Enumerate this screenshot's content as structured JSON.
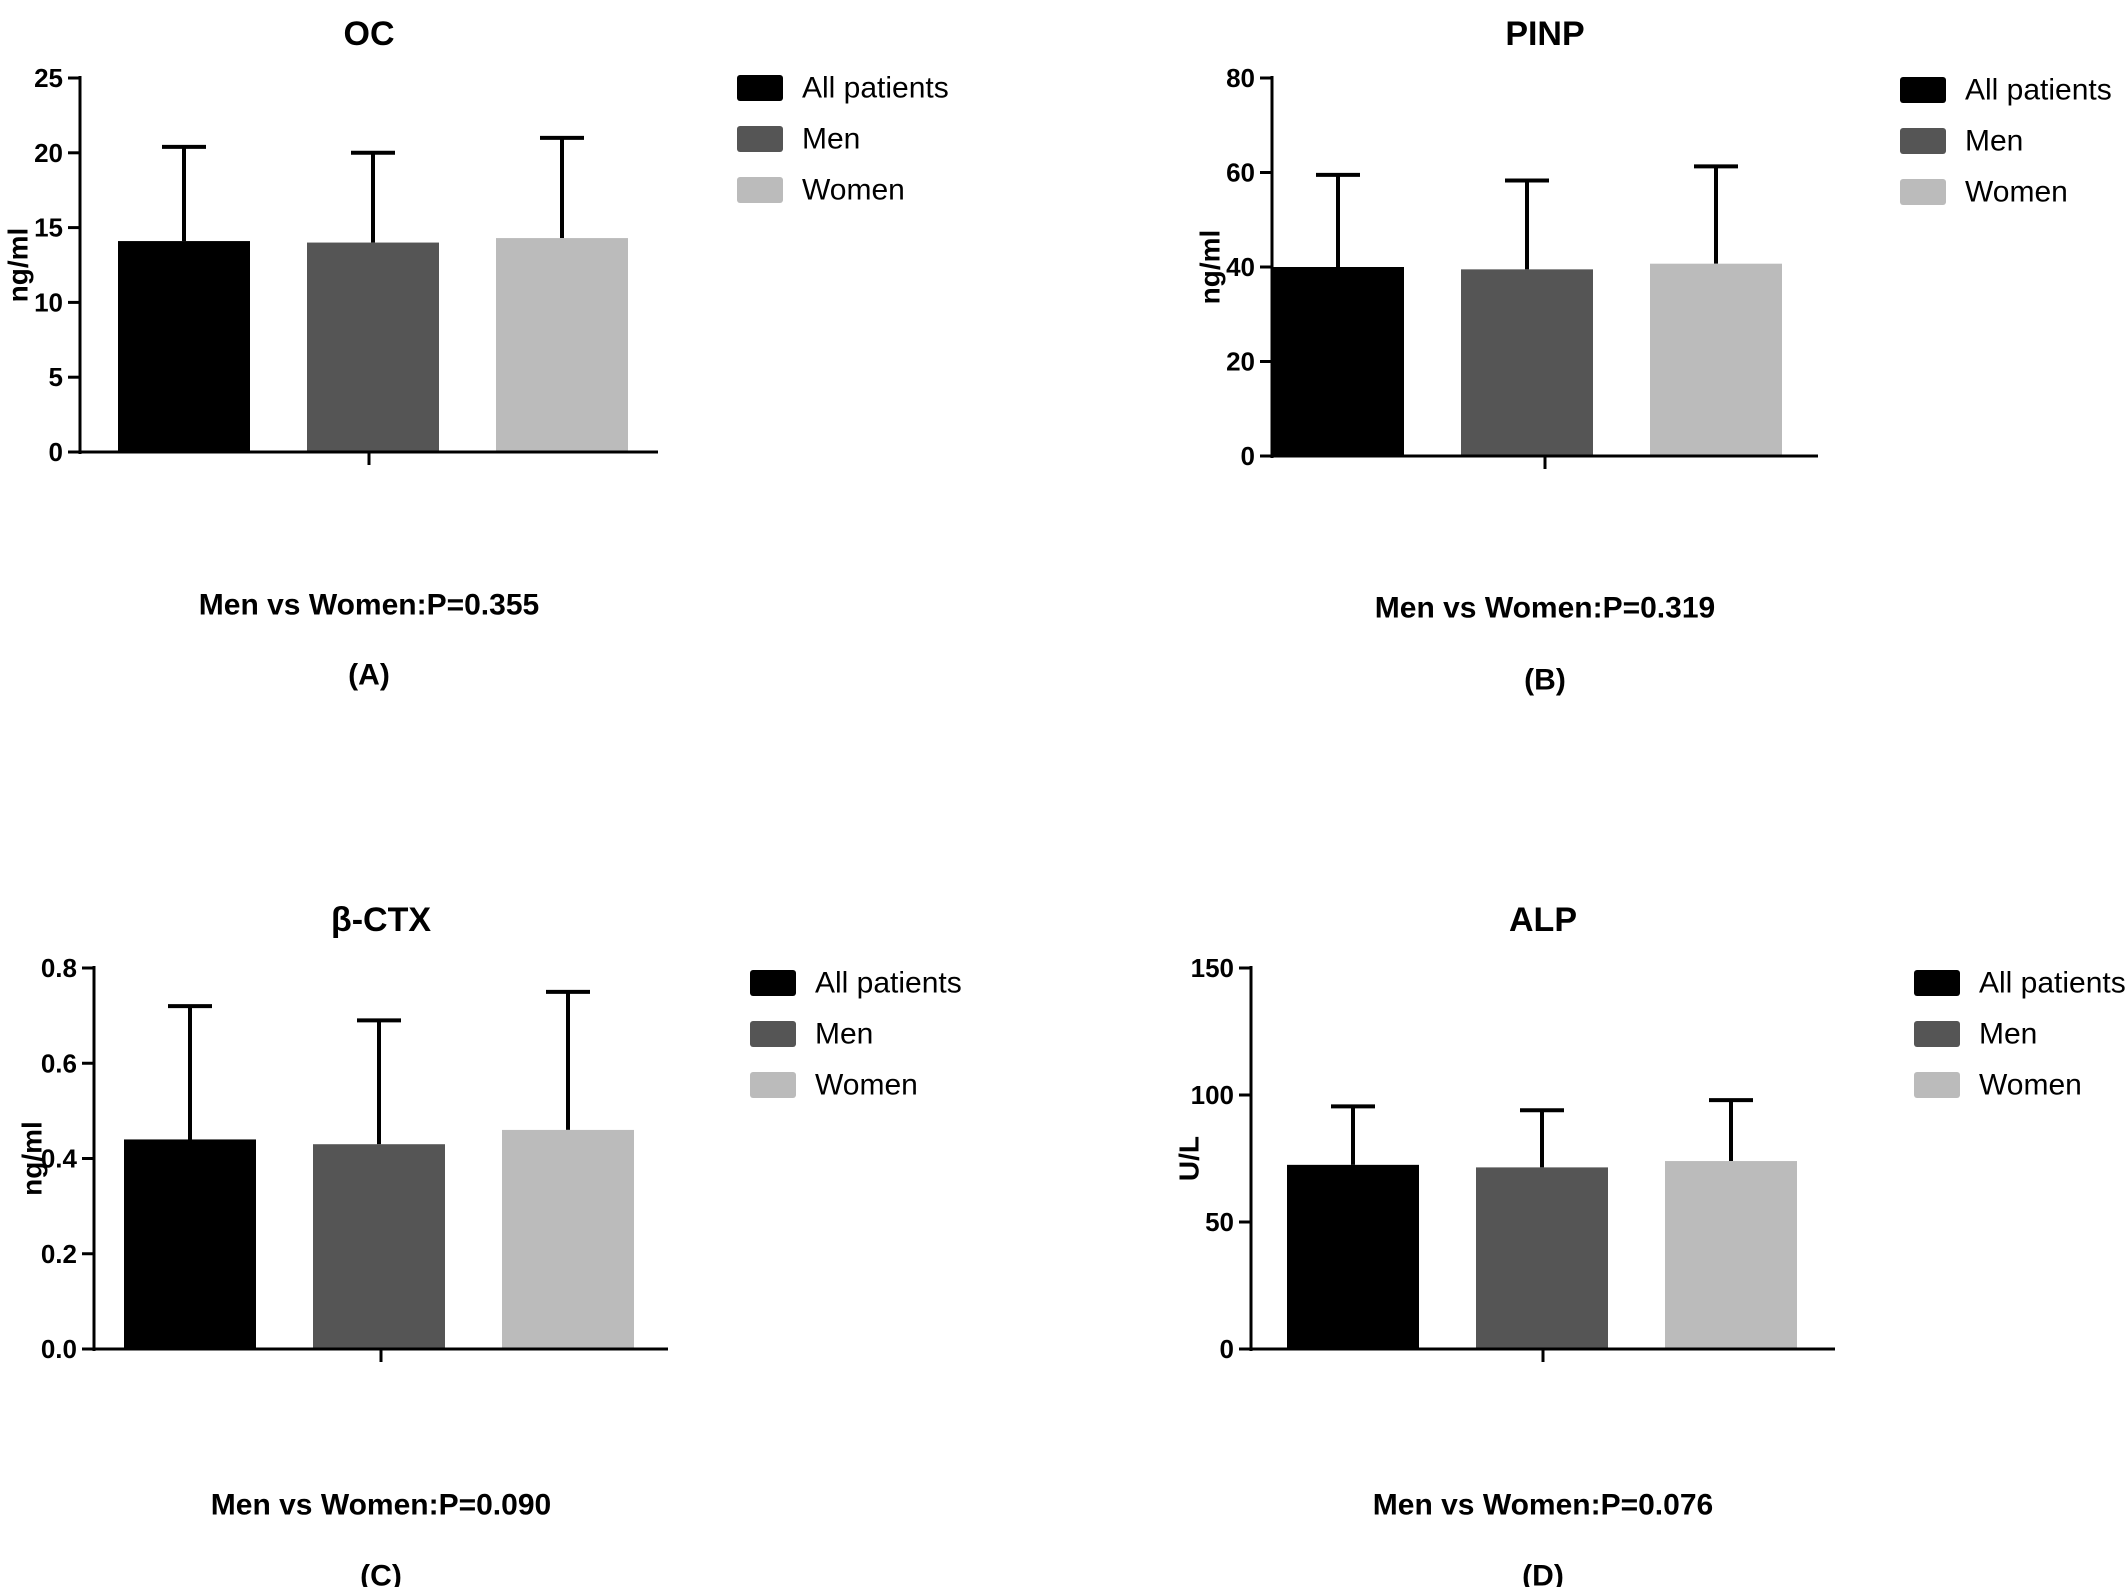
{
  "chart_data": [
    {
      "type": "bar",
      "title": "OC",
      "ylabel": "ng/ml",
      "ylim": [
        0,
        25
      ],
      "yticks": [
        "0",
        "5",
        "10",
        "15",
        "20",
        "25"
      ],
      "series": [
        {
          "name": "All patients",
          "value": 14.1,
          "error": 6.3,
          "color": "#000000"
        },
        {
          "name": "Men",
          "value": 14.0,
          "error": 6.0,
          "color": "#555555"
        },
        {
          "name": "Women",
          "value": 14.3,
          "error": 6.7,
          "color": "#bbbbbb"
        }
      ],
      "annotation": "Men vs Women:P=0.355",
      "panel_label": "(A)"
    },
    {
      "type": "bar",
      "title": "PINP",
      "ylabel": "ng/ml",
      "ylim": [
        0,
        80
      ],
      "yticks": [
        "0",
        "20",
        "40",
        "60",
        "80"
      ],
      "series": [
        {
          "name": "All patients",
          "value": 40.0,
          "error": 19.5,
          "color": "#000000"
        },
        {
          "name": "Men",
          "value": 39.5,
          "error": 18.8,
          "color": "#555555"
        },
        {
          "name": "Women",
          "value": 40.7,
          "error": 20.6,
          "color": "#bbbbbb"
        }
      ],
      "annotation": "Men vs Women:P=0.319",
      "panel_label": "(B)"
    },
    {
      "type": "bar",
      "title": "β-CTX",
      "ylabel": "ng/ml",
      "ylim": [
        0,
        0.8
      ],
      "yticks": [
        "0.0",
        "0.2",
        "0.4",
        "0.6",
        "0.8"
      ],
      "series": [
        {
          "name": "All patients",
          "value": 0.44,
          "error": 0.28,
          "color": "#000000"
        },
        {
          "name": "Men",
          "value": 0.43,
          "error": 0.26,
          "color": "#555555"
        },
        {
          "name": "Women",
          "value": 0.46,
          "error": 0.29,
          "color": "#bbbbbb"
        }
      ],
      "annotation": "Men vs Women:P=0.090",
      "panel_label": "(C)"
    },
    {
      "type": "bar",
      "title": "ALP",
      "ylabel": "U/L",
      "ylim": [
        0,
        150
      ],
      "yticks": [
        "0",
        "50",
        "100",
        "150"
      ],
      "series": [
        {
          "name": "All patients",
          "value": 72.5,
          "error": 23.0,
          "color": "#000000"
        },
        {
          "name": "Men",
          "value": 71.5,
          "error": 22.5,
          "color": "#555555"
        },
        {
          "name": "Women",
          "value": 74.0,
          "error": 24.0,
          "color": "#bbbbbb"
        }
      ],
      "annotation": "Men vs Women:P=0.076",
      "panel_label": "(D)"
    }
  ]
}
